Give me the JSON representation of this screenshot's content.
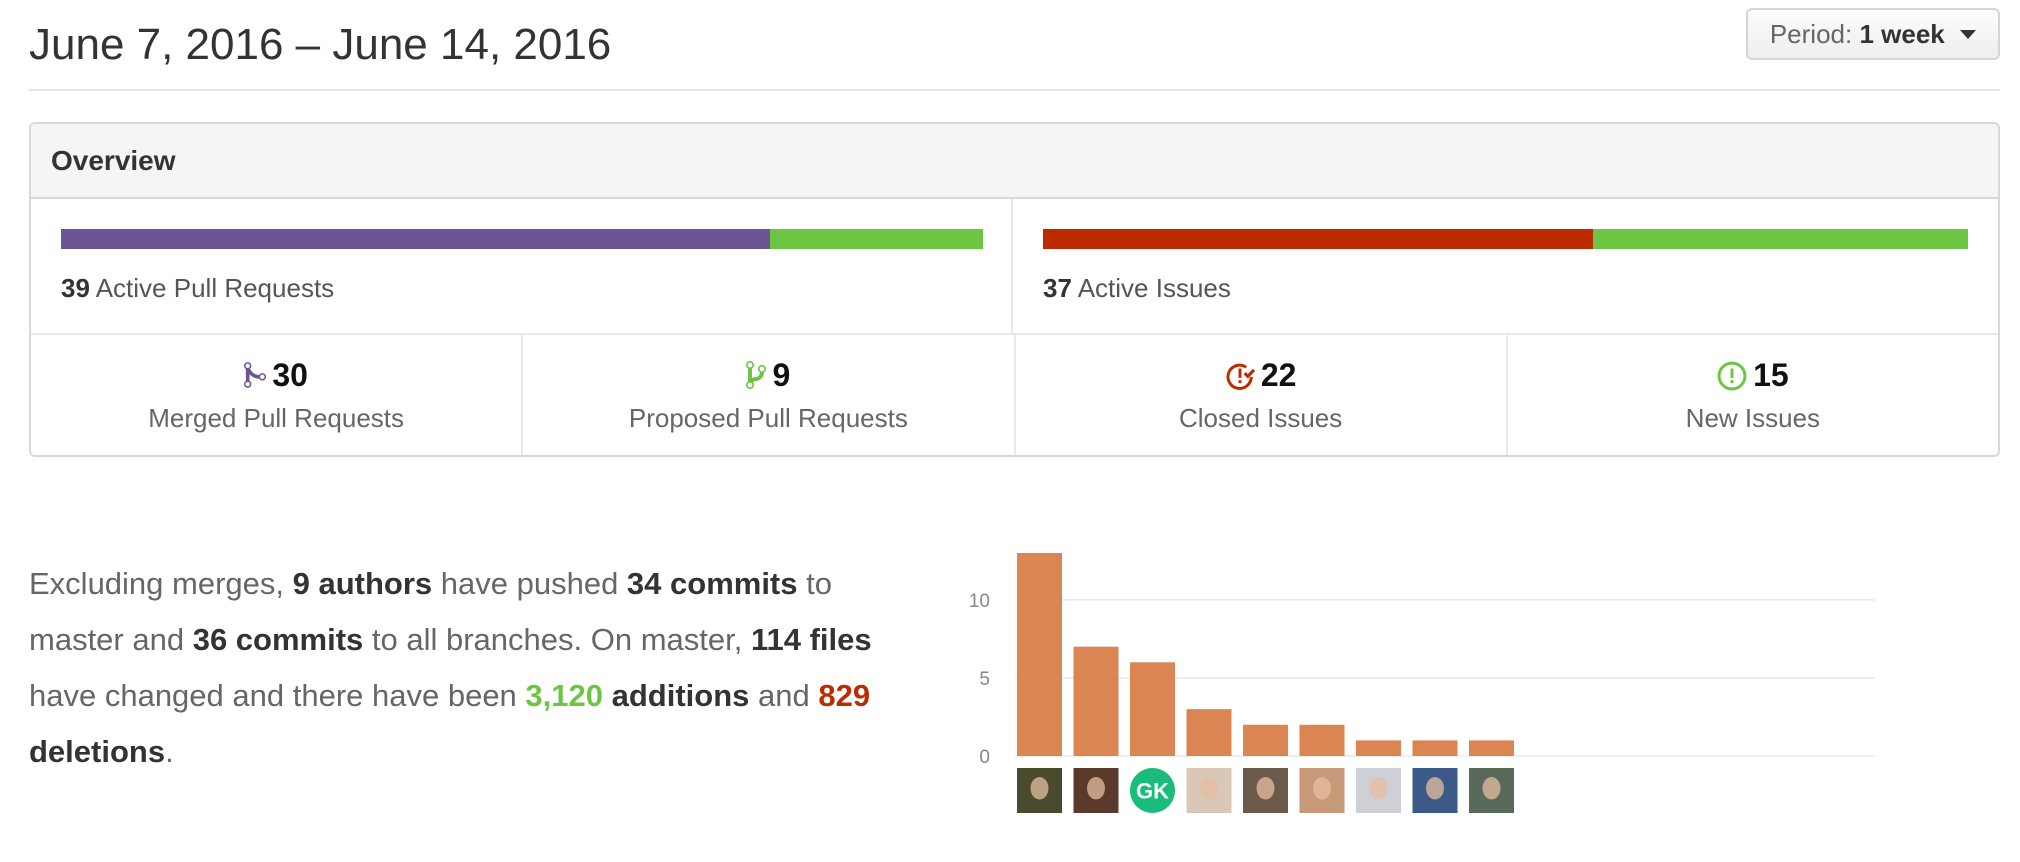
{
  "header": {
    "date_range": "June 7, 2016 – June 14, 2016",
    "period_label": "Period:",
    "period_value": "1 week"
  },
  "overview": {
    "title": "Overview",
    "pull_requests": {
      "active_count": "39",
      "active_label": "Active Pull Requests",
      "merged_fraction": 0.769,
      "bar_colors": [
        "#6e5494",
        "#6cc644"
      ]
    },
    "issues": {
      "active_count": "37",
      "active_label": "Active Issues",
      "closed_fraction": 0.595,
      "bar_colors": [
        "#bd2c00",
        "#6cc644"
      ]
    },
    "stats": [
      {
        "icon": "git-merge-icon",
        "count": "30",
        "label": "Merged Pull Requests",
        "color": "#6e5494"
      },
      {
        "icon": "git-pull-request-icon",
        "count": "9",
        "label": "Proposed Pull Requests",
        "color": "#6cc644"
      },
      {
        "icon": "issue-closed-icon",
        "count": "22",
        "label": "Closed Issues",
        "color": "#bd2c00"
      },
      {
        "icon": "issue-opened-icon",
        "count": "15",
        "label": "New Issues",
        "color": "#6cc644"
      }
    ]
  },
  "summary": {
    "t1": "Excluding merges, ",
    "authors": "9 authors",
    "t2": " have pushed ",
    "commits_master": "34 commits",
    "t3": " to master and ",
    "commits_all": "36 commits",
    "t4": " to all branches. On master, ",
    "files": "114 files",
    "t5": " have changed and there have been ",
    "additions_num": "3,120",
    "additions_word": " additions",
    "t6": " and ",
    "deletions_num": "829",
    "deletions_word": " deletions",
    "t7": "."
  },
  "chart_data": {
    "type": "bar",
    "categories": [
      "author-1",
      "author-2",
      "GK",
      "author-4",
      "author-5",
      "author-6",
      "author-7",
      "author-8",
      "author-9"
    ],
    "values": [
      13,
      7,
      6,
      3,
      2,
      2,
      1,
      1,
      1
    ],
    "yticks": [
      "0",
      "5",
      "10"
    ],
    "ylim": [
      0,
      13
    ],
    "bar_color": "#db8553",
    "grid": true,
    "avatar_initials": "GK",
    "avatar_colors": [
      "#4a4a2e",
      "#5a3a2a",
      "#1abc7c",
      "#d9c7b8",
      "#6b5a4a",
      "#c89a7a",
      "#cfcfd6",
      "#3c5a88",
      "#5a6a5a"
    ]
  }
}
